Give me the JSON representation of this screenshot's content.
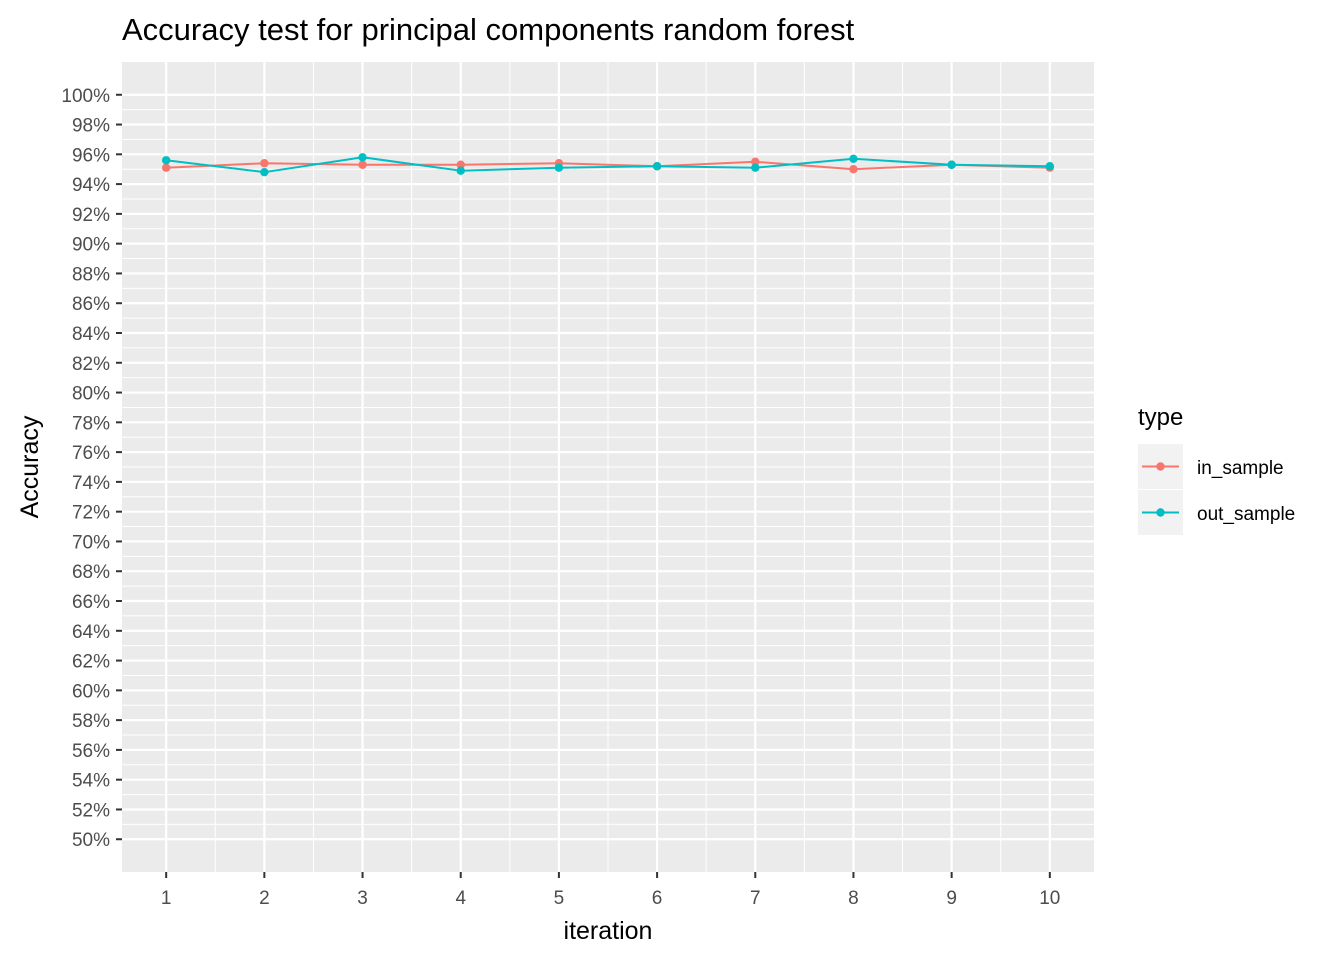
{
  "chart_data": {
    "type": "line",
    "title": "Accuracy test for principal components random forest",
    "xlabel": "iteration",
    "ylabel": "Accuracy",
    "x": [
      1,
      2,
      3,
      4,
      5,
      6,
      7,
      8,
      9,
      10
    ],
    "x_tick_labels": [
      "1",
      "2",
      "3",
      "4",
      "5",
      "6",
      "7",
      "8",
      "9",
      "10"
    ],
    "y_tick_values": [
      0.5,
      0.52,
      0.54,
      0.56,
      0.58,
      0.6,
      0.62,
      0.64,
      0.66,
      0.68,
      0.7,
      0.72,
      0.74,
      0.76,
      0.78,
      0.8,
      0.82,
      0.84,
      0.86,
      0.88,
      0.9,
      0.92,
      0.94,
      0.96,
      0.98,
      1.0
    ],
    "y_tick_labels": [
      "50%",
      "52%",
      "54%",
      "56%",
      "58%",
      "60%",
      "62%",
      "64%",
      "66%",
      "68%",
      "70%",
      "72%",
      "74%",
      "76%",
      "78%",
      "80%",
      "82%",
      "84%",
      "86%",
      "88%",
      "90%",
      "92%",
      "94%",
      "96%",
      "98%",
      "100%"
    ],
    "xlim": [
      0.55,
      10.45
    ],
    "ylim": [
      0.478,
      1.022
    ],
    "grid": true,
    "legend": {
      "title": "type",
      "placement": "right"
    },
    "series": [
      {
        "name": "in_sample",
        "color": "#F8766D",
        "values": [
          0.951,
          0.954,
          0.953,
          0.953,
          0.954,
          0.952,
          0.955,
          0.95,
          0.953,
          0.951
        ]
      },
      {
        "name": "out_sample",
        "color": "#00BFC4",
        "values": [
          0.956,
          0.948,
          0.958,
          0.949,
          0.951,
          0.952,
          0.951,
          0.957,
          0.953,
          0.952
        ]
      }
    ],
    "panel_color": "#EBEBEB",
    "grid_color": "#FFFFFF",
    "legend_key_color": "#F2F2F2"
  }
}
